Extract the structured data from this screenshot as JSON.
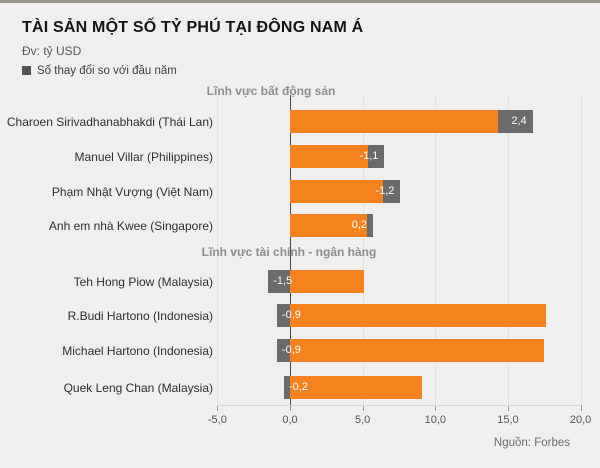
{
  "header": {
    "title": "TÀI SẢN MỘT SỐ TỶ PHÚ TẠI ĐÔNG NAM Á",
    "unit_note": "Đv: tỷ USD",
    "legend_label": "Số thay đổi so với đầu năm"
  },
  "source": "Nguồn: Forbes",
  "chart_data": {
    "type": "bar",
    "orientation": "horizontal",
    "title": "TÀI SẢN MỘT SỐ TỶ PHÚ TẠI ĐÔNG NAM Á",
    "unit": "tỷ USD",
    "legend": [
      {
        "label": "Số thay đổi so với đầu năm",
        "color": "#545454"
      }
    ],
    "xlabel": "",
    "ylabel": "",
    "xlim": [
      -5,
      20
    ],
    "grid": true,
    "x_ticks": [
      {
        "value": -5,
        "label": "-5,0"
      },
      {
        "value": 0,
        "label": "0,0"
      },
      {
        "value": 5,
        "label": "5,0"
      },
      {
        "value": 10,
        "label": "10,0"
      },
      {
        "value": 15,
        "label": "15,0"
      },
      {
        "value": 20,
        "label": "20,0"
      }
    ],
    "groups": [
      {
        "label": "Lĩnh vực bất động sản",
        "rows": [
          {
            "name": "Charoen Sirivadhanabhakdi (Thái Lan)",
            "value": 14.3,
            "change": 2.4,
            "change_label": "2,4",
            "box_position": "end"
          },
          {
            "name": "Manuel Villar (Philippines)",
            "value": 5.4,
            "change": -1.1,
            "change_label": "-1,1",
            "box_position": "end"
          },
          {
            "name": "Phạm Nhật Vượng (Việt Nam)",
            "value": 6.4,
            "change": -1.2,
            "change_label": "-1,2",
            "box_position": "end"
          },
          {
            "name": "Anh em nhà Kwee (Singapore)",
            "value": 5.3,
            "change": 0.2,
            "change_label": "0,2",
            "box_position": "end"
          }
        ]
      },
      {
        "label": "Lĩnh vực tài chính - ngân hàng",
        "rows": [
          {
            "name": "Teh Hong Piow (Malaysia)",
            "value": 5.1,
            "change": -1.5,
            "change_label": "-1,5",
            "box_position": "zero"
          },
          {
            "name": "R.Budi Hartono (Indonesia)",
            "value": 17.6,
            "change": -0.9,
            "change_label": "-0,9",
            "box_position": "zero"
          },
          {
            "name": "Michael Hartono (Indonesia)",
            "value": 17.5,
            "change": -0.9,
            "change_label": "-0,9",
            "box_position": "zero"
          },
          {
            "name": "Quek Leng Chan (Malaysia)",
            "value": 9.1,
            "change": -0.2,
            "change_label": "-0,2",
            "box_position": "zero"
          }
        ]
      }
    ],
    "colors": {
      "bar": "#f6811f",
      "change_box": "#6a6a6a",
      "change_text": "#ffffff",
      "background": "#f0efed"
    }
  }
}
